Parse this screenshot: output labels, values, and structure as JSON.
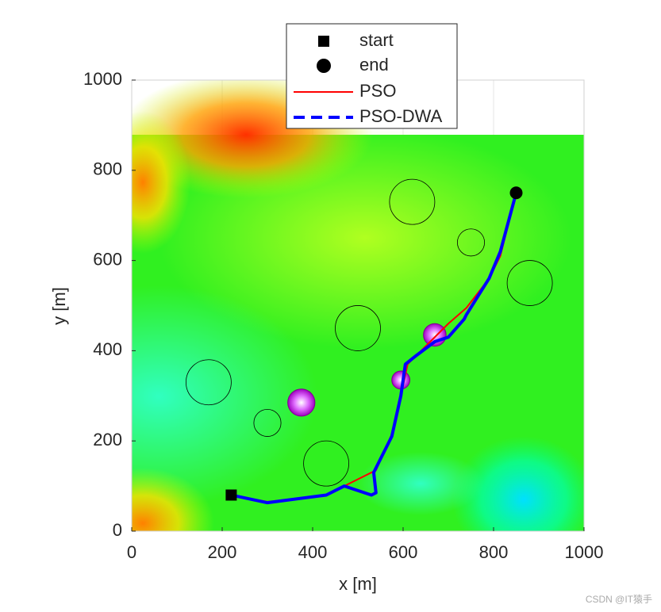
{
  "chart_data": {
    "type": "line",
    "xlabel": "x [m]",
    "ylabel": "y [m]",
    "xlim": [
      0,
      1000
    ],
    "ylim": [
      0,
      1000
    ],
    "xticks": [
      0,
      200,
      400,
      600,
      800,
      1000
    ],
    "yticks": [
      0,
      200,
      400,
      600,
      800,
      1000
    ],
    "grid": true,
    "series": [
      {
        "name": "start",
        "color": "#000000",
        "marker": "square",
        "x": [
          220
        ],
        "y": [
          80
        ]
      },
      {
        "name": "end",
        "color": "#000000",
        "marker": "circle",
        "x": [
          850
        ],
        "y": [
          750
        ]
      },
      {
        "name": "PSO",
        "color": "#ff0000",
        "line": "solid",
        "x": [
          220,
          300,
          430,
          480,
          540,
          575,
          595,
          610,
          660,
          700,
          740,
          790,
          815,
          850
        ],
        "y": [
          80,
          65,
          80,
          105,
          135,
          215,
          300,
          370,
          420,
          460,
          495,
          560,
          610,
          750
        ]
      },
      {
        "name": "PSO-DWA",
        "color": "#0000ff",
        "line": "dashed",
        "x": [
          220,
          300,
          430,
          470,
          530,
          540,
          535,
          575,
          595,
          605,
          630,
          670,
          700,
          735,
          740,
          790,
          815,
          850
        ],
        "y": [
          80,
          63,
          80,
          100,
          80,
          85,
          130,
          210,
          300,
          370,
          390,
          420,
          430,
          470,
          480,
          560,
          620,
          750
        ]
      }
    ],
    "obstacles": [
      {
        "x": 620,
        "y": 730,
        "r": 50
      },
      {
        "x": 750,
        "y": 640,
        "r": 30
      },
      {
        "x": 880,
        "y": 550,
        "r": 50
      },
      {
        "x": 500,
        "y": 450,
        "r": 50
      },
      {
        "x": 170,
        "y": 330,
        "r": 50
      },
      {
        "x": 300,
        "y": 240,
        "r": 30
      },
      {
        "x": 430,
        "y": 150,
        "r": 50
      }
    ],
    "dynamic_obstacles": [
      {
        "x": 375,
        "y": 285,
        "r": 30
      },
      {
        "x": 595,
        "y": 335,
        "r": 20
      },
      {
        "x": 670,
        "y": 435,
        "r": 25
      }
    ],
    "watermark": "CSDN @IT猿手"
  }
}
